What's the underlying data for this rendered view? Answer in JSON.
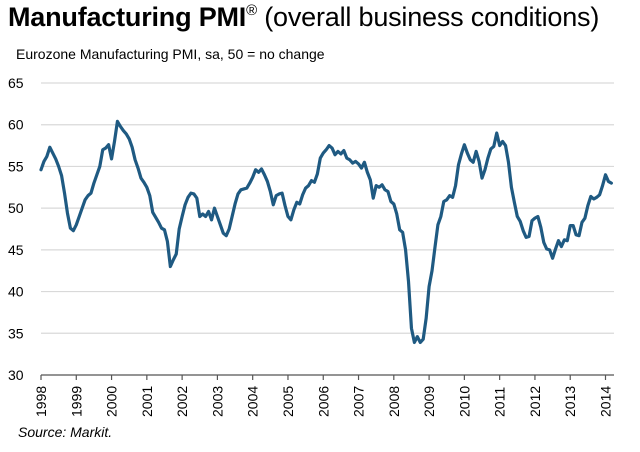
{
  "title": {
    "bold": "Manufacturing PMI",
    "registered": "®",
    "rest": " (overall business conditions)"
  },
  "source": "Source: Markit.",
  "chart_data": {
    "type": "line",
    "title": "Manufacturing PMI® (overall business conditions)",
    "subtitle": "Eurozone Manufacturing PMI, sa, 50 = no change",
    "xlabel": "",
    "ylabel": "",
    "ylim": [
      30,
      65
    ],
    "yticks": [
      30,
      35,
      40,
      45,
      50,
      55,
      60,
      65
    ],
    "xlim": [
      1998.0,
      2014.25
    ],
    "xticks": [
      "1998",
      "1999",
      "2000",
      "2001",
      "2002",
      "2003",
      "2004",
      "2005",
      "2006",
      "2007",
      "2008",
      "2009",
      "2010",
      "2011",
      "2012",
      "2013",
      "2014"
    ],
    "grid": "horizontal",
    "line_color": "#1f5a82",
    "start": "1998-01",
    "frequency": "monthly",
    "series": [
      {
        "name": "Eurozone Manufacturing PMI",
        "values": [
          54.6,
          55.6,
          56.2,
          57.3,
          56.6,
          55.9,
          55.0,
          53.9,
          51.8,
          49.4,
          47.6,
          47.3,
          48.0,
          49.0,
          50.0,
          51.0,
          51.5,
          51.8,
          53.0,
          54.0,
          55.0,
          57.0,
          57.2,
          57.6,
          55.9,
          58.0,
          60.4,
          59.8,
          59.3,
          58.9,
          58.3,
          57.3,
          55.8,
          54.8,
          53.6,
          53.1,
          52.5,
          51.5,
          49.5,
          48.9,
          48.3,
          47.6,
          47.4,
          46.0,
          43.0,
          43.8,
          44.5,
          47.5,
          49.0,
          50.4,
          51.3,
          51.8,
          51.7,
          51.2,
          49.0,
          49.3,
          49.0,
          49.6,
          48.6,
          50.0,
          49.0,
          48.0,
          47.0,
          46.7,
          47.5,
          49.0,
          50.5,
          51.7,
          52.2,
          52.3,
          52.4,
          53.0,
          53.7,
          54.6,
          54.3,
          54.7,
          54.0,
          53.2,
          52.0,
          50.4,
          51.5,
          51.7,
          51.8,
          50.3,
          49.0,
          48.6,
          49.8,
          50.7,
          50.5,
          51.6,
          52.4,
          52.7,
          53.3,
          53.1,
          54.1,
          56.0,
          56.6,
          57.0,
          57.5,
          57.2,
          56.4,
          56.8,
          56.5,
          56.9,
          56.0,
          55.8,
          55.4,
          55.6,
          55.3,
          54.8,
          55.5,
          54.3,
          53.4,
          51.2,
          52.7,
          52.5,
          52.8,
          52.2,
          52.0,
          50.8,
          50.5,
          49.3,
          47.4,
          47.1,
          45.0,
          41.2,
          35.6,
          33.9,
          34.6,
          33.9,
          34.3,
          36.8,
          40.6,
          42.5,
          45.3,
          48.0,
          49.0,
          50.8,
          51.0,
          51.5,
          51.3,
          52.7,
          55.2,
          56.5,
          57.6,
          56.6,
          55.8,
          55.5,
          56.8,
          55.6,
          53.6,
          54.6,
          56.0,
          57.1,
          57.4,
          59.0,
          57.5,
          58.0,
          57.5,
          55.5,
          52.5,
          50.7,
          49.0,
          48.4,
          47.3,
          46.5,
          46.6,
          48.5,
          48.8,
          49.0,
          47.7,
          45.9,
          45.1,
          45.0,
          44.0,
          45.1,
          46.1,
          45.4,
          46.2,
          46.1,
          47.9,
          47.9,
          46.8,
          46.7,
          48.3,
          48.8,
          50.3,
          51.4,
          51.1,
          51.3,
          51.6,
          52.7,
          54.0,
          53.2,
          53.0
        ]
      }
    ]
  }
}
